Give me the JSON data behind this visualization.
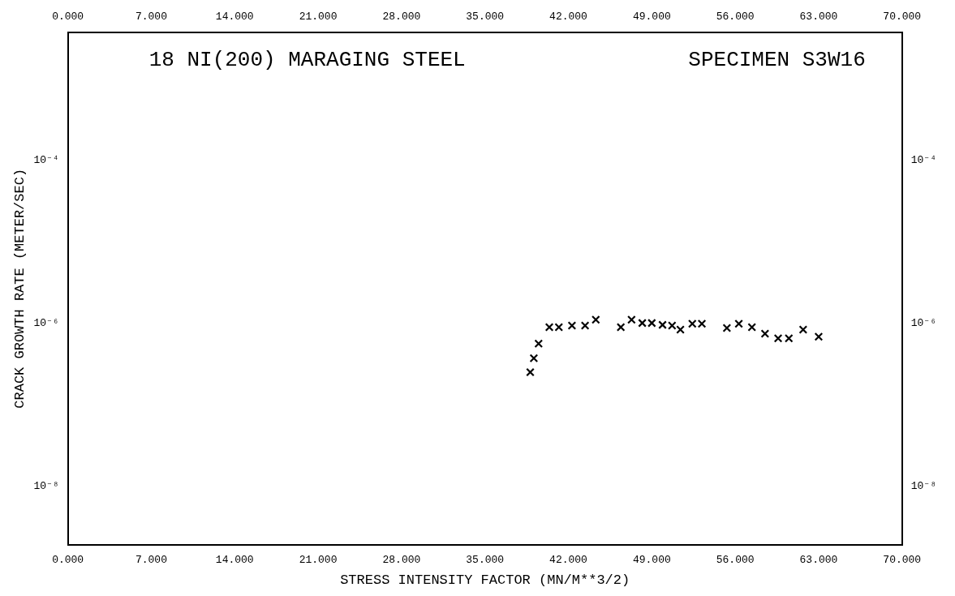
{
  "chart_data": {
    "type": "scatter",
    "xlabel": "STRESS INTENSITY FACTOR (MN/M**3/2)",
    "ylabel": "CRACK GROWTH RATE (METER/SEC)",
    "annotations": [
      "18 NI(200) MARAGING STEEL",
      "SPECIMEN S3W16"
    ],
    "series": [
      {
        "color": "#000000",
        "x": [
          38.8,
          39.1,
          39.5,
          40.4,
          41.2,
          42.3,
          43.4,
          44.3,
          46.4,
          47.3,
          48.2,
          49.0,
          49.9,
          50.7,
          51.4,
          52.4,
          53.2,
          55.3,
          56.3,
          57.4,
          58.5,
          59.6,
          60.5,
          61.7,
          63.0
        ],
        "values": [
          2.5e-07,
          3.7e-07,
          5.6e-07,
          8.9e-07,
          8.9e-07,
          9.3e-07,
          9.3e-07,
          1.1e-06,
          8.9e-07,
          1.1e-06,
          1e-06,
          1e-06,
          9.5e-07,
          9.3e-07,
          8.3e-07,
          9.8e-07,
          9.8e-07,
          8.7e-07,
          9.8e-07,
          8.9e-07,
          7.4e-07,
          6.5e-07,
          6.5e-07,
          8.3e-07,
          6.8e-07
        ]
      }
    ],
    "xlim": [
      0,
      70
    ],
    "xticks": [
      {
        "value": 0,
        "label": "0.000"
      },
      {
        "value": 7,
        "label": "7.000"
      },
      {
        "value": 14,
        "label": "14.000"
      },
      {
        "value": 21,
        "label": "21.000"
      },
      {
        "value": 28,
        "label": "28.000"
      },
      {
        "value": 35,
        "label": "35.000"
      },
      {
        "value": 42,
        "label": "42.000"
      },
      {
        "value": 49,
        "label": "49.000"
      },
      {
        "value": 56,
        "label": "56.000"
      },
      {
        "value": 63,
        "label": "63.000"
      },
      {
        "value": 70,
        "label": "70.000"
      }
    ],
    "x2lim": [
      0,
      70
    ],
    "x2ticks": [
      {
        "value": 0,
        "label": "0.000"
      },
      {
        "value": 7,
        "label": "7.000"
      },
      {
        "value": 14,
        "label": "14.000"
      },
      {
        "value": 21,
        "label": "21.000"
      },
      {
        "value": 28,
        "label": "28.000"
      },
      {
        "value": 35,
        "label": "35.000"
      },
      {
        "value": 42,
        "label": "42.000"
      },
      {
        "value": 49,
        "label": "49.000"
      },
      {
        "value": 56,
        "label": "56.000"
      },
      {
        "value": 63,
        "label": "63.000"
      },
      {
        "value": 70,
        "label": "70.000"
      }
    ],
    "ylim": [
      1.9e-09,
      0.0037
    ],
    "yticks": [
      {
        "value": 1e-08,
        "label": "10⁻⁸"
      },
      {
        "value": 1e-06,
        "label": "10⁻⁶"
      },
      {
        "value": 0.0001,
        "label": "10⁻⁴"
      }
    ],
    "log": "y",
    "grid": false,
    "legend": false,
    "marker": "cross"
  }
}
